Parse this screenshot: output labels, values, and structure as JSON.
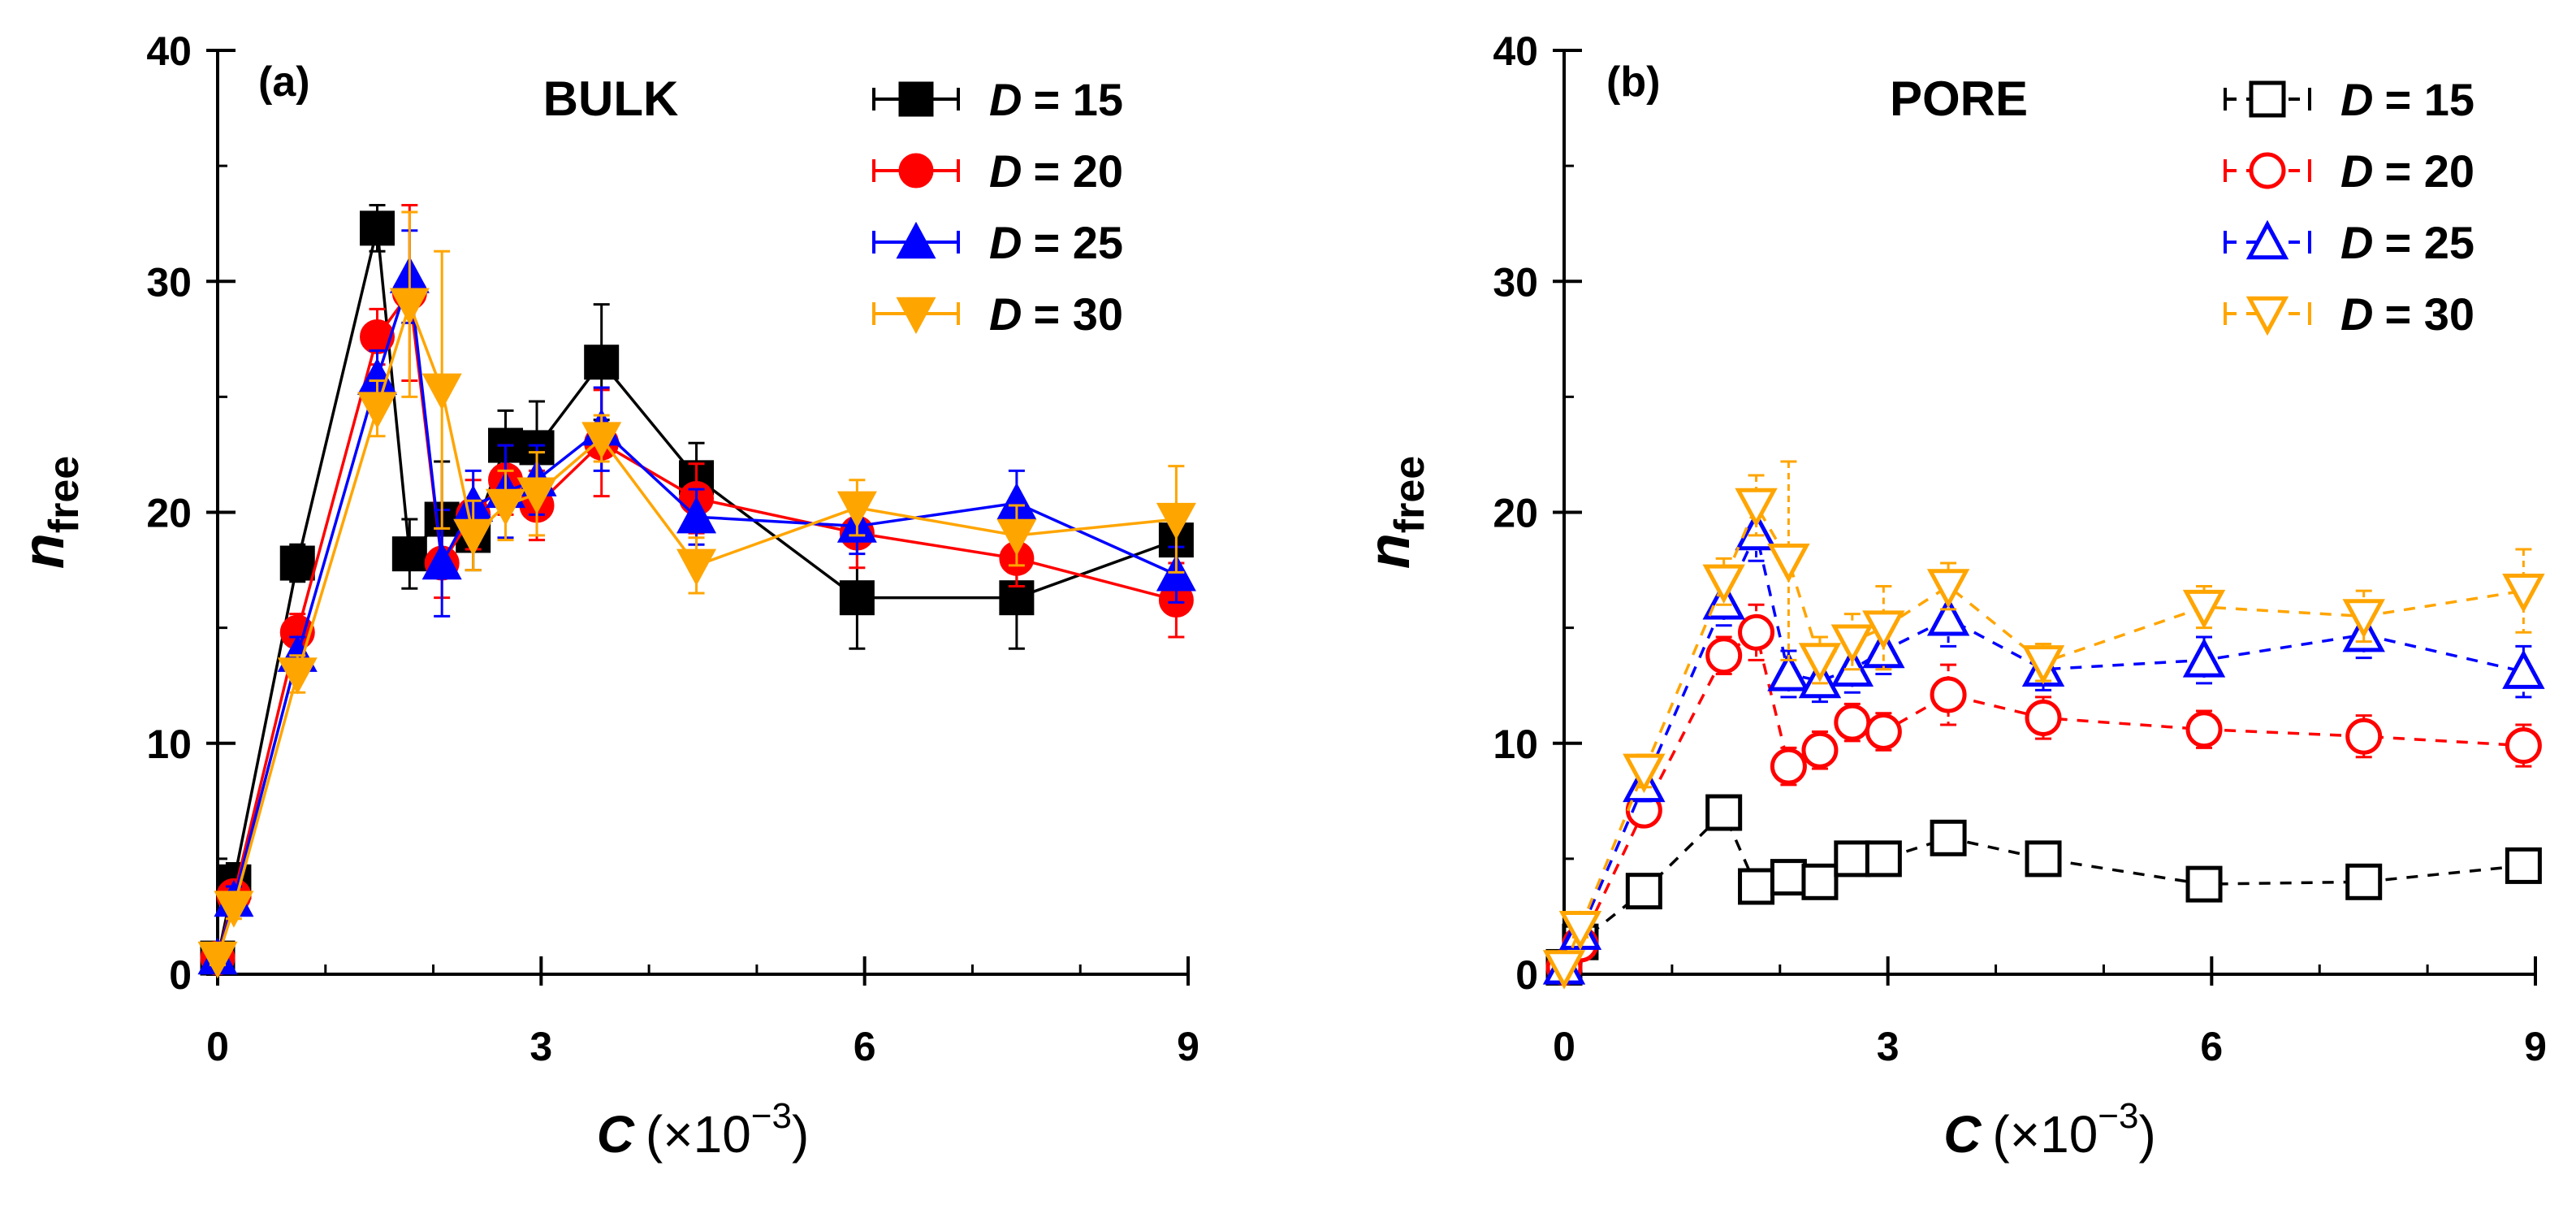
{
  "chart_data": [
    {
      "type": "line",
      "panel_label": "(a)",
      "title": "BULK",
      "xlabel_var": "C",
      "xlabel_unit": "(×10",
      "xlabel_exp": "−3",
      "xlabel_close": ")",
      "ylabel_var": "n",
      "ylabel_sub": "free",
      "xlim": [
        0,
        9
      ],
      "ylim": [
        0,
        40
      ],
      "xticks": [
        0,
        3,
        6,
        9
      ],
      "yticks": [
        0,
        10,
        20,
        30,
        40
      ],
      "marker_style": "filled",
      "line_style": "solid",
      "legend_position": "top-right",
      "series": [
        {
          "name": "D = 15",
          "legend_var": "D",
          "legend_val": "= 15",
          "color": "#000000",
          "marker": "square",
          "x": [
            0.0,
            0.15,
            0.74,
            1.48,
            1.78,
            2.08,
            2.37,
            2.67,
            2.96,
            3.56,
            4.44,
            5.93,
            7.41,
            8.89
          ],
          "y": [
            0.7,
            4.0,
            17.8,
            32.3,
            18.2,
            19.7,
            19.0,
            22.9,
            22.8,
            26.5,
            21.5,
            16.3,
            16.3,
            18.8
          ],
          "err": [
            0.3,
            0.8,
            0.8,
            1.0,
            1.5,
            2.5,
            1.5,
            1.5,
            2.0,
            2.5,
            1.5,
            2.2,
            2.2,
            1.5
          ]
        },
        {
          "name": "D = 20",
          "legend_var": "D",
          "legend_val": "= 20",
          "color": "#ff0000",
          "marker": "circle",
          "x": [
            0.0,
            0.15,
            0.74,
            1.48,
            1.78,
            2.08,
            2.37,
            2.67,
            2.96,
            3.56,
            4.44,
            5.93,
            7.41,
            8.89
          ],
          "y": [
            0.7,
            3.4,
            14.8,
            27.6,
            29.5,
            17.8,
            19.9,
            21.4,
            20.3,
            23.0,
            20.6,
            19.1,
            18.0,
            16.2
          ],
          "err": [
            0.3,
            0.6,
            0.8,
            1.2,
            3.8,
            1.5,
            1.5,
            1.5,
            1.5,
            2.3,
            1.5,
            1.5,
            1.2,
            1.6
          ]
        },
        {
          "name": "D = 25",
          "legend_var": "D",
          "legend_val": "= 25",
          "color": "#0000ff",
          "marker": "triangle-up",
          "x": [
            0.0,
            0.15,
            0.74,
            1.48,
            1.78,
            2.08,
            2.37,
            2.67,
            2.96,
            3.56,
            4.44,
            5.93,
            7.41,
            8.89
          ],
          "y": [
            0.7,
            3.2,
            13.8,
            25.8,
            30.2,
            17.8,
            20.3,
            20.9,
            21.4,
            23.6,
            19.8,
            19.4,
            20.4,
            17.3
          ],
          "err": [
            0.3,
            0.6,
            0.8,
            1.2,
            2.0,
            2.3,
            1.5,
            2.0,
            1.5,
            1.8,
            1.2,
            1.2,
            1.4,
            1.2
          ]
        },
        {
          "name": "D = 30",
          "legend_var": "D",
          "legend_val": "= 30",
          "color": "#ffa500",
          "marker": "triangle-down",
          "x": [
            0.0,
            0.15,
            0.74,
            1.48,
            1.78,
            2.08,
            2.37,
            2.67,
            2.96,
            3.56,
            4.44,
            5.93,
            7.41,
            8.89
          ],
          "y": [
            0.7,
            2.9,
            13.0,
            24.5,
            29.0,
            25.3,
            19.0,
            20.3,
            20.8,
            23.2,
            17.7,
            20.2,
            19.0,
            19.7
          ],
          "err": [
            0.3,
            0.5,
            0.8,
            1.2,
            4.0,
            6.0,
            1.5,
            1.5,
            1.8,
            1.0,
            1.2,
            1.2,
            1.3,
            2.3
          ]
        }
      ]
    },
    {
      "type": "line",
      "panel_label": "(b)",
      "title": "PORE",
      "xlabel_var": "C",
      "xlabel_unit": "(×10",
      "xlabel_exp": "−3",
      "xlabel_close": ")",
      "ylabel_var": "n",
      "ylabel_sub": "free",
      "xlim": [
        0,
        9
      ],
      "ylim": [
        0,
        40
      ],
      "xticks": [
        0,
        3,
        6,
        9
      ],
      "yticks": [
        0,
        10,
        20,
        30,
        40
      ],
      "marker_style": "open",
      "line_style": "dashed",
      "legend_position": "top-right",
      "series": [
        {
          "name": "D = 15",
          "legend_var": "D",
          "legend_val": "= 15",
          "color": "#000000",
          "marker": "square",
          "x": [
            0.0,
            0.15,
            0.74,
            1.48,
            1.78,
            2.08,
            2.37,
            2.67,
            2.96,
            3.56,
            4.44,
            5.93,
            7.41,
            8.89
          ],
          "y": [
            0.3,
            1.4,
            3.6,
            7.0,
            3.8,
            4.2,
            4.0,
            5.0,
            5.0,
            5.9,
            5.0,
            3.9,
            4.0,
            4.7
          ],
          "err": [
            0.2,
            0.3,
            0.4,
            0.5,
            0.5,
            0.5,
            0.5,
            0.5,
            0.5,
            0.5,
            0.4,
            0.4,
            0.4,
            0.4
          ]
        },
        {
          "name": "D = 20",
          "legend_var": "D",
          "legend_val": "= 20",
          "color": "#ff0000",
          "marker": "circle",
          "x": [
            0.0,
            0.15,
            0.74,
            1.48,
            1.78,
            2.08,
            2.37,
            2.67,
            2.96,
            3.56,
            4.44,
            5.93,
            7.41,
            8.89
          ],
          "y": [
            0.3,
            1.3,
            7.1,
            13.8,
            14.8,
            9.0,
            9.7,
            10.9,
            10.5,
            12.1,
            11.1,
            10.6,
            10.3,
            9.9
          ],
          "err": [
            0.2,
            0.4,
            0.6,
            0.8,
            1.2,
            0.8,
            0.8,
            0.8,
            0.8,
            1.3,
            0.9,
            0.8,
            0.9,
            0.9
          ]
        },
        {
          "name": "D = 25",
          "legend_var": "D",
          "legend_val": "= 25",
          "color": "#0000ff",
          "marker": "triangle-up",
          "x": [
            0.0,
            0.15,
            0.74,
            1.48,
            1.78,
            2.08,
            2.37,
            2.67,
            2.96,
            3.56,
            4.44,
            5.93,
            7.41,
            8.89
          ],
          "y": [
            0.3,
            1.8,
            8.2,
            16.1,
            19.1,
            13.0,
            12.7,
            13.2,
            14.0,
            15.4,
            13.2,
            13.6,
            14.7,
            13.1
          ],
          "err": [
            0.2,
            0.4,
            0.7,
            1.0,
            1.2,
            1.0,
            0.9,
            1.0,
            1.0,
            1.2,
            0.9,
            1.0,
            1.0,
            1.1
          ]
        },
        {
          "name": "D = 30",
          "legend_var": "D",
          "legend_val": "= 30",
          "color": "#ffa500",
          "marker": "triangle-down",
          "x": [
            0.0,
            0.15,
            0.74,
            1.48,
            1.78,
            2.08,
            2.37,
            2.67,
            2.96,
            3.56,
            4.44,
            5.93,
            7.41,
            8.89
          ],
          "y": [
            0.3,
            2.0,
            8.8,
            17.0,
            20.3,
            17.9,
            13.6,
            14.4,
            15.0,
            16.8,
            13.5,
            15.9,
            15.5,
            16.6
          ],
          "err": [
            0.2,
            0.4,
            0.7,
            1.0,
            1.3,
            4.3,
            1.0,
            1.2,
            1.8,
            1.0,
            0.8,
            0.9,
            1.1,
            1.8
          ]
        }
      ]
    }
  ]
}
